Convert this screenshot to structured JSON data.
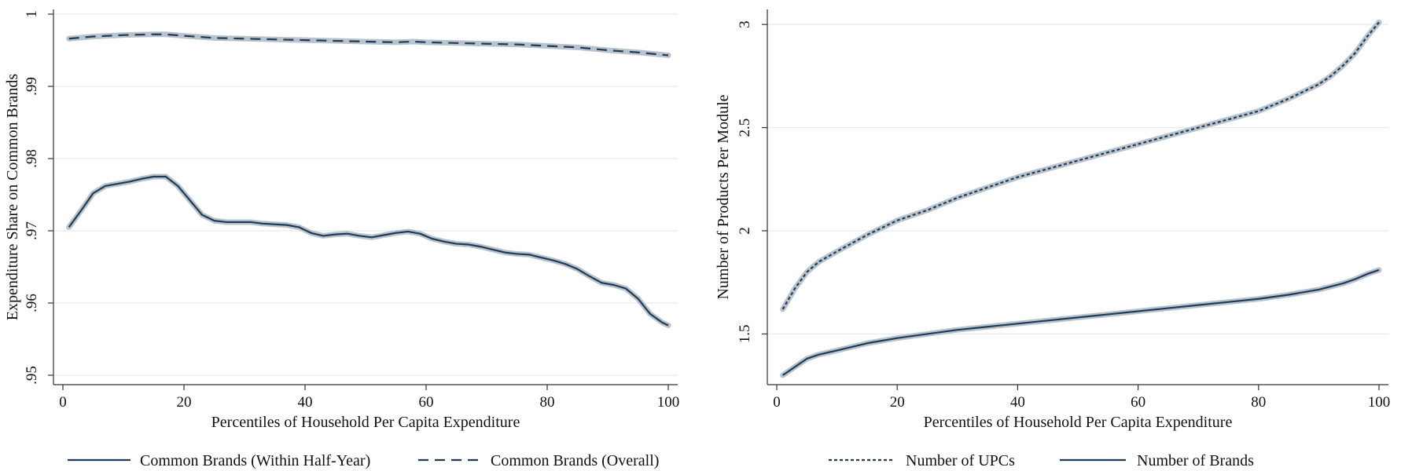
{
  "chart_data": [
    {
      "type": "line",
      "xlabel": "Percentiles of Household Per Capita Expenditure",
      "ylabel": "Expenditure Share on Common Brands",
      "xlim": [
        0,
        100
      ],
      "ylim": [
        0.95,
        1.0
      ],
      "xticks": [
        "0",
        "20",
        "40",
        "60",
        "80",
        "100"
      ],
      "yticks": [
        ".95",
        ".96",
        ".97",
        ".98",
        ".99",
        "1"
      ],
      "ytick_values": [
        0.95,
        0.96,
        0.97,
        0.98,
        0.99,
        1.0
      ],
      "xtick_values": [
        0,
        20,
        40,
        60,
        80,
        100
      ],
      "grid": true,
      "legend_position": "bottom",
      "series": [
        {
          "name": "Common Brands (Within Half-Year)",
          "style": "solid",
          "color": "#1f3b57",
          "band_color": "#b9c3cc",
          "x": [
            1,
            3,
            5,
            7,
            9,
            11,
            13,
            15,
            17,
            19,
            21,
            23,
            25,
            27,
            29,
            31,
            33,
            35,
            37,
            39,
            41,
            43,
            45,
            47,
            49,
            51,
            53,
            55,
            57,
            59,
            61,
            63,
            65,
            67,
            69,
            71,
            73,
            75,
            77,
            79,
            81,
            83,
            85,
            87,
            89,
            91,
            93,
            95,
            97,
            99,
            100
          ],
          "y": [
            0.9705,
            0.9728,
            0.9752,
            0.9762,
            0.9765,
            0.9768,
            0.9772,
            0.9775,
            0.9775,
            0.9762,
            0.9742,
            0.9722,
            0.9714,
            0.9712,
            0.9712,
            0.9712,
            0.971,
            0.9709,
            0.9708,
            0.9705,
            0.9697,
            0.9693,
            0.9695,
            0.9696,
            0.9693,
            0.9691,
            0.9694,
            0.9697,
            0.9699,
            0.9696,
            0.9689,
            0.9685,
            0.9682,
            0.9681,
            0.9678,
            0.9674,
            0.967,
            0.9668,
            0.9667,
            0.9663,
            0.9659,
            0.9654,
            0.9647,
            0.9637,
            0.9628,
            0.9625,
            0.962,
            0.9606,
            0.9585,
            0.9573,
            0.9569
          ]
        },
        {
          "name": "Common Brands (Overall)",
          "style": "dashed",
          "color": "#1f3b57",
          "band_color": "#b9c3cc",
          "x": [
            1,
            5,
            10,
            15,
            17,
            20,
            25,
            30,
            35,
            40,
            45,
            50,
            55,
            58,
            60,
            65,
            70,
            75,
            80,
            85,
            90,
            95,
            100
          ],
          "y": [
            0.9966,
            0.9969,
            0.9971,
            0.9972,
            0.9972,
            0.997,
            0.9967,
            0.9966,
            0.9965,
            0.9964,
            0.9963,
            0.9962,
            0.9961,
            0.9962,
            0.9961,
            0.996,
            0.9959,
            0.9958,
            0.9956,
            0.9954,
            0.995,
            0.9947,
            0.9943
          ]
        }
      ]
    },
    {
      "type": "line",
      "xlabel": "Percentiles of Household Per Capita Expenditure",
      "ylabel": "Number of Products Per Module",
      "xlim": [
        0,
        100
      ],
      "ylim": [
        1.3,
        3.05
      ],
      "xticks": [
        "0",
        "20",
        "40",
        "60",
        "80",
        "100"
      ],
      "yticks": [
        "1.5",
        "2",
        "2.5",
        "3"
      ],
      "ytick_values": [
        1.5,
        2.0,
        2.5,
        3.0
      ],
      "xtick_values": [
        0,
        20,
        40,
        60,
        80,
        100
      ],
      "grid": true,
      "legend_position": "bottom",
      "series": [
        {
          "name": "Number of UPCs",
          "style": "dotted",
          "color": "#1f3b57",
          "band_color": "#b9c3cc",
          "x": [
            1,
            3,
            5,
            7,
            10,
            15,
            20,
            25,
            30,
            35,
            40,
            45,
            50,
            55,
            60,
            65,
            70,
            75,
            80,
            85,
            90,
            92,
            94,
            96,
            98,
            100
          ],
          "y": [
            1.62,
            1.72,
            1.8,
            1.85,
            1.9,
            1.98,
            2.05,
            2.1,
            2.16,
            2.21,
            2.26,
            2.3,
            2.34,
            2.38,
            2.42,
            2.46,
            2.5,
            2.54,
            2.58,
            2.64,
            2.71,
            2.75,
            2.8,
            2.86,
            2.94,
            3.01
          ]
        },
        {
          "name": "Number of Brands",
          "style": "solid",
          "color": "#1f3b57",
          "band_color": "#b9c3cc",
          "x": [
            1,
            3,
            5,
            7,
            10,
            15,
            20,
            25,
            30,
            35,
            40,
            45,
            50,
            55,
            60,
            65,
            70,
            75,
            80,
            85,
            90,
            92,
            94,
            96,
            98,
            100
          ],
          "y": [
            1.3,
            1.34,
            1.38,
            1.4,
            1.42,
            1.455,
            1.48,
            1.5,
            1.52,
            1.535,
            1.55,
            1.565,
            1.58,
            1.595,
            1.61,
            1.625,
            1.64,
            1.655,
            1.67,
            1.69,
            1.715,
            1.73,
            1.745,
            1.765,
            1.79,
            1.81
          ]
        }
      ]
    }
  ]
}
